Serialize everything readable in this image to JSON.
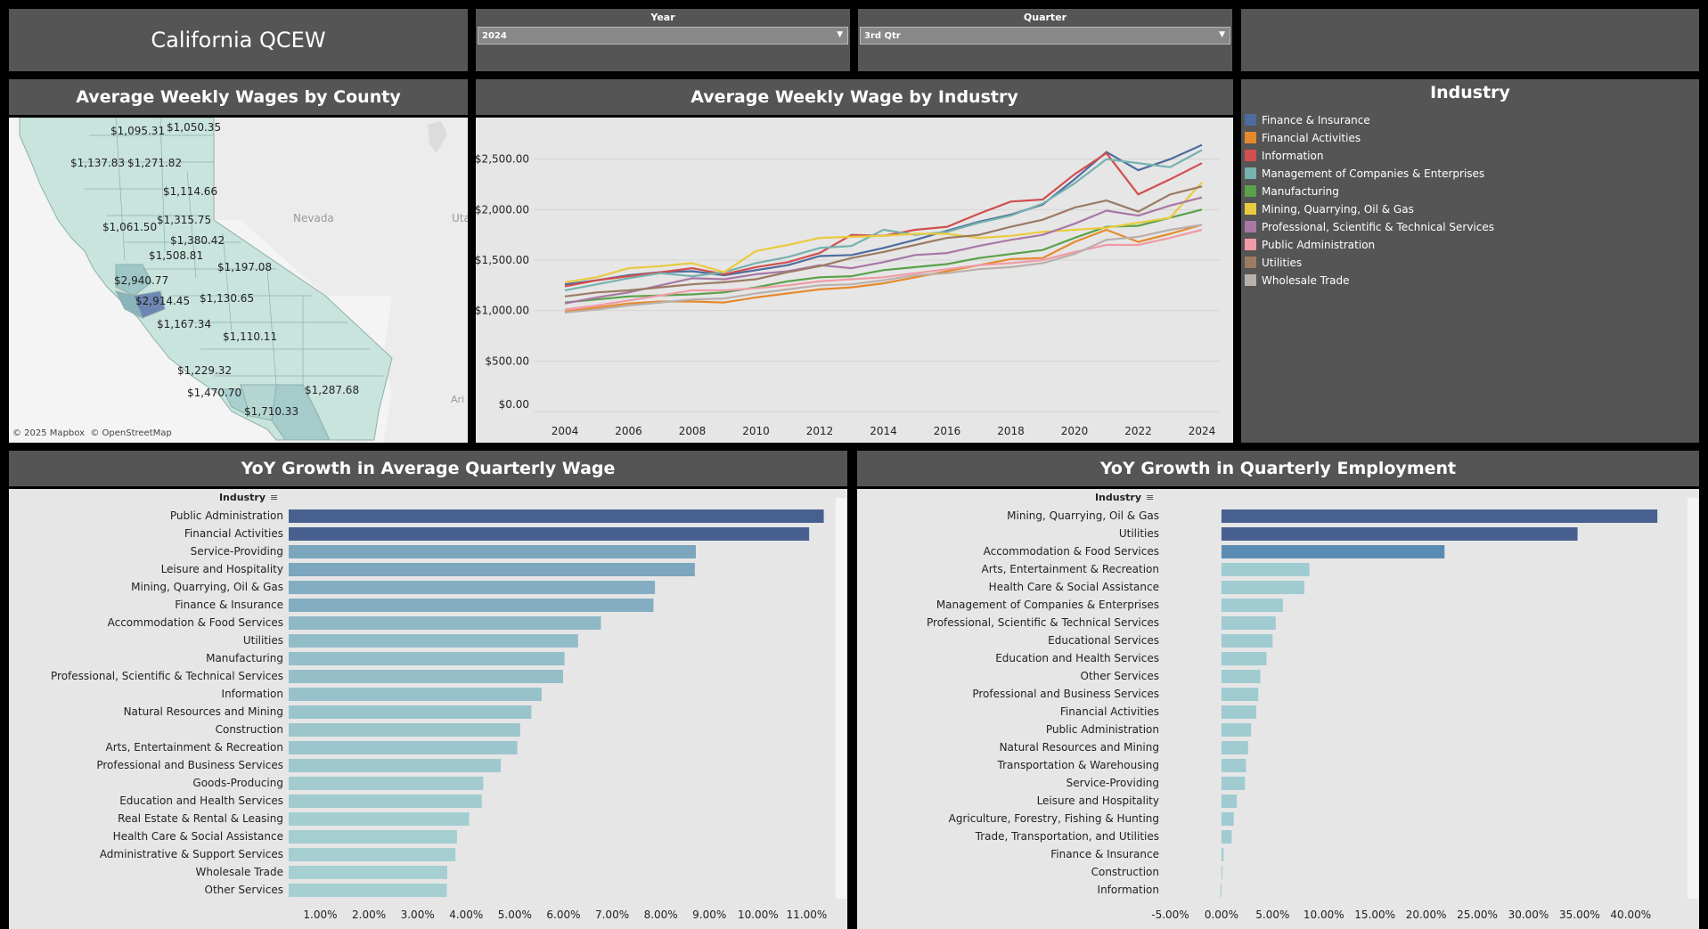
{
  "title": "California QCEW",
  "filters": {
    "year_label": "Year",
    "year_value": "2024",
    "quarter_label": "Quarter",
    "quarter_value": "3rd Qtr"
  },
  "map": {
    "title": "Average Weekly Wages by County",
    "attribution": "© 2025 Mapbox  © OpenStreetMap",
    "place_labels": [
      "Nevada",
      "Uta",
      "Ari"
    ],
    "county_labels": [
      "$1,095.31",
      "$1,050.35",
      "$1,137.83",
      "$1,271.82",
      "$1,114.66",
      "$1,061.50",
      "$1,315.75",
      "$1,380.42",
      "$1,508.81",
      "$1,197.08",
      "$2,940.77",
      "$2,914.45",
      "$1,130.65",
      "$1,167.34",
      "$1,110.11",
      "$1,229.32",
      "$1,470.70",
      "$1,287.68",
      "$1,710.33"
    ]
  },
  "legend": {
    "title": "Industry",
    "items": [
      {
        "label": "Finance & Insurance",
        "color": "#4e6ba0"
      },
      {
        "label": "Financial Activities",
        "color": "#e58a2c"
      },
      {
        "label": "Information",
        "color": "#d24e4f"
      },
      {
        "label": "Management of Companies & Enterprises",
        "color": "#76b2ae"
      },
      {
        "label": "Manufacturing",
        "color": "#5aa24a"
      },
      {
        "label": "Mining, Quarrying, Oil & Gas",
        "color": "#e9cb3e"
      },
      {
        "label": "Professional, Scientific & Technical Services",
        "color": "#a878a6"
      },
      {
        "label": "Public Administration",
        "color": "#f09ba7"
      },
      {
        "label": "Utilities",
        "color": "#9c7b63"
      },
      {
        "label": "Wholesale Trade",
        "color": "#bab0ab"
      }
    ]
  },
  "chart_data": [
    {
      "type": "line",
      "title": "Average Weekly Wage by Industry",
      "x": [
        2004,
        2005,
        2006,
        2007,
        2008,
        2009,
        2010,
        2011,
        2012,
        2013,
        2014,
        2015,
        2016,
        2017,
        2018,
        2019,
        2020,
        2021,
        2022,
        2023,
        2024
      ],
      "x_ticks": [
        "2004",
        "2006",
        "2008",
        "2010",
        "2012",
        "2014",
        "2016",
        "2018",
        "2020",
        "2022",
        "2024"
      ],
      "y_ticks": [
        "$0.00",
        "$500.00",
        "$1,000.00",
        "$1,500.00",
        "$2,000.00",
        "$2,500.00"
      ],
      "ylim": [
        0,
        2700
      ],
      "series": [
        {
          "name": "Finance & Insurance",
          "values": [
            1260,
            1300,
            1350,
            1380,
            1390,
            1350,
            1400,
            1450,
            1540,
            1550,
            1620,
            1700,
            1790,
            1880,
            1950,
            2050,
            2300,
            2570,
            2390,
            2500,
            2640
          ]
        },
        {
          "name": "Financial Activities",
          "values": [
            990,
            1030,
            1070,
            1090,
            1090,
            1080,
            1130,
            1170,
            1210,
            1230,
            1270,
            1330,
            1390,
            1450,
            1510,
            1520,
            1680,
            1800,
            1680,
            1760,
            1850
          ]
        },
        {
          "name": "Information",
          "values": [
            1240,
            1300,
            1340,
            1380,
            1420,
            1360,
            1430,
            1480,
            1570,
            1750,
            1740,
            1800,
            1830,
            1960,
            2080,
            2100,
            2350,
            2560,
            2150,
            2300,
            2460
          ]
        },
        {
          "name": "Management of Companies & Enterprises",
          "values": [
            1200,
            1260,
            1320,
            1370,
            1340,
            1380,
            1470,
            1530,
            1620,
            1640,
            1800,
            1750,
            1780,
            1870,
            1940,
            2060,
            2260,
            2500,
            2460,
            2420,
            2590
          ]
        },
        {
          "name": "Manufacturing",
          "values": [
            1080,
            1110,
            1140,
            1150,
            1160,
            1180,
            1230,
            1290,
            1330,
            1340,
            1400,
            1430,
            1460,
            1520,
            1560,
            1600,
            1720,
            1830,
            1840,
            1920,
            2000
          ]
        },
        {
          "name": "Mining, Quarrying, Oil & Gas",
          "values": [
            1280,
            1330,
            1420,
            1440,
            1470,
            1380,
            1590,
            1650,
            1720,
            1730,
            1740,
            1760,
            1760,
            1720,
            1740,
            1780,
            1800,
            1820,
            1870,
            1920,
            2270
          ]
        },
        {
          "name": "Professional, Scientific & Technical Services",
          "values": [
            1070,
            1130,
            1180,
            1250,
            1320,
            1310,
            1360,
            1390,
            1450,
            1420,
            1480,
            1550,
            1570,
            1640,
            1700,
            1750,
            1860,
            1990,
            1940,
            2040,
            2120
          ]
        },
        {
          "name": "Public Administration",
          "values": [
            1010,
            1050,
            1100,
            1150,
            1200,
            1200,
            1220,
            1250,
            1290,
            1310,
            1330,
            1370,
            1410,
            1450,
            1470,
            1500,
            1580,
            1650,
            1650,
            1720,
            1800
          ]
        },
        {
          "name": "Utilities",
          "values": [
            1140,
            1180,
            1200,
            1230,
            1260,
            1280,
            1310,
            1380,
            1440,
            1520,
            1580,
            1650,
            1720,
            1750,
            1830,
            1900,
            2020,
            2090,
            1980,
            2150,
            2230
          ]
        },
        {
          "name": "Wholesale Trade",
          "values": [
            980,
            1010,
            1050,
            1080,
            1110,
            1120,
            1170,
            1210,
            1250,
            1260,
            1300,
            1350,
            1370,
            1410,
            1430,
            1470,
            1560,
            1700,
            1730,
            1800,
            1850
          ]
        }
      ]
    },
    {
      "type": "bar",
      "title": "YoY Growth in Average Quarterly Wage",
      "axis_header": "Industry",
      "categories": [
        "Public Administration",
        "Financial Activities",
        "Service-Providing",
        "Leisure and Hospitality",
        "Mining, Quarrying, Oil & Gas",
        "Finance & Insurance",
        "Accommodation & Food Services",
        "Utilities",
        "Manufacturing",
        "Professional, Scientific & Technical Services",
        "Information",
        "Natural Resources and Mining",
        "Construction",
        "Arts, Entertainment & Recreation",
        "Professional and Business Services",
        "Goods-Producing",
        "Education and Health Services",
        "Real Estate & Rental & Leasing",
        "Health Care & Social Assistance",
        "Administrative & Support Services",
        "Wholesale Trade",
        "Other Services"
      ],
      "values": [
        11.35,
        11.05,
        8.72,
        8.7,
        7.88,
        7.85,
        6.77,
        6.3,
        6.02,
        5.99,
        5.55,
        5.34,
        5.11,
        5.05,
        4.71,
        4.35,
        4.32,
        4.06,
        3.81,
        3.78,
        3.61,
        3.6
      ],
      "x_ticks": [
        "1.00%",
        "2.00%",
        "3.00%",
        "4.00%",
        "5.00%",
        "6.00%",
        "7.00%",
        "8.00%",
        "9.00%",
        "10.00%",
        "11.00%"
      ],
      "xlim": [
        0.35,
        11.45
      ]
    },
    {
      "type": "bar",
      "title": "YoY Growth in Quarterly Employment",
      "axis_header": "Industry",
      "categories": [
        "Mining, Quarrying, Oil & Gas",
        "Utilities",
        "Accommodation & Food Services",
        "Arts, Entertainment & Recreation",
        "Health Care & Social Assistance",
        "Management of Companies & Enterprises",
        "Professional, Scientific & Technical Services",
        "Educational Services",
        "Education and Health Services",
        "Other Services",
        "Professional and Business Services",
        "Financial Activities",
        "Public Administration",
        "Natural Resources and Mining",
        "Transportation & Warehousing",
        "Service-Providing",
        "Leisure and Hospitality",
        "Agriculture, Forestry, Fishing & Hunting",
        "Trade, Transportation, and Utilities",
        "Finance & Insurance",
        "Construction",
        "Information"
      ],
      "values": [
        42.6,
        34.8,
        21.8,
        8.6,
        8.1,
        6.0,
        5.3,
        5.0,
        4.4,
        3.8,
        3.6,
        3.4,
        2.9,
        2.6,
        2.4,
        2.3,
        1.5,
        1.2,
        1.0,
        0.2,
        0.05,
        -0.1
      ],
      "x_ticks": [
        "-5.00%",
        "0.00%",
        "5.00%",
        "10.00%",
        "15.00%",
        "20.00%",
        "25.00%",
        "30.00%",
        "35.00%",
        "40.00%"
      ],
      "xlim": [
        -6.0,
        44.5
      ]
    }
  ]
}
